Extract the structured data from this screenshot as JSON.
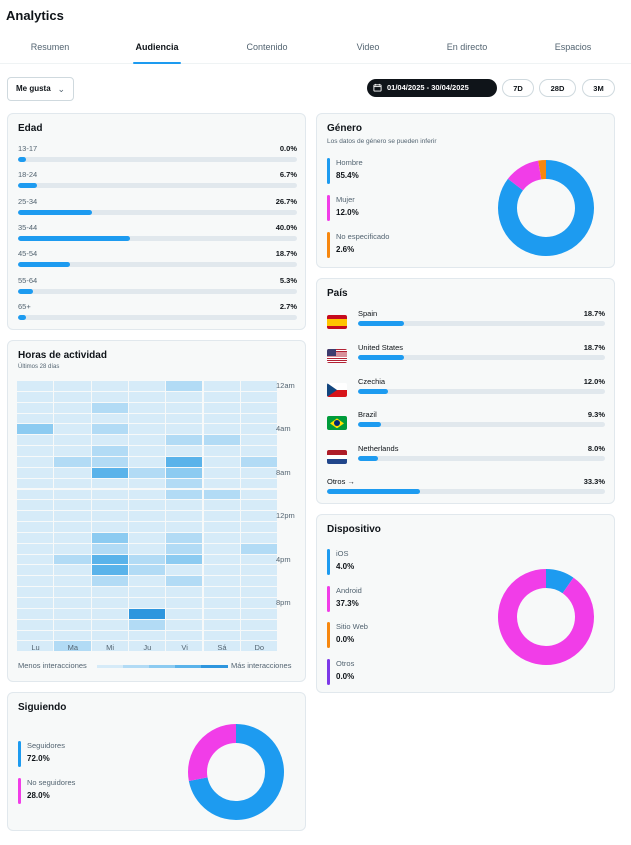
{
  "header": {
    "title": "Analytics"
  },
  "tabs": [
    "Resumen",
    "Audiencia",
    "Contenido",
    "Video",
    "En directo",
    "Espacios"
  ],
  "active_tab": 1,
  "filter": {
    "metric": "Me gusta",
    "date_range": "01/04/2025 - 30/04/2025",
    "periods": [
      "7D",
      "28D",
      "3M"
    ]
  },
  "age": {
    "title": "Edad",
    "rows": [
      {
        "label": "13-17",
        "value": "0.0%",
        "pct": 0.0
      },
      {
        "label": "18-24",
        "value": "6.7%",
        "pct": 6.7
      },
      {
        "label": "25-34",
        "value": "26.7%",
        "pct": 26.7
      },
      {
        "label": "35-44",
        "value": "40.0%",
        "pct": 40.0
      },
      {
        "label": "45-54",
        "value": "18.7%",
        "pct": 18.7
      },
      {
        "label": "55-64",
        "value": "5.3%",
        "pct": 5.3
      },
      {
        "label": "65+",
        "value": "2.7%",
        "pct": 2.7
      }
    ]
  },
  "activity": {
    "title": "Horas de actividad",
    "subtitle": "Últimos 28 días",
    "days": [
      "Lu",
      "Ma",
      "Mi",
      "Ju",
      "Vi",
      "Sá",
      "Do"
    ],
    "hour_labels": [
      "12am",
      "4am",
      "8am",
      "12pm",
      "4pm",
      "8pm"
    ],
    "legend_low": "Menos interacciones",
    "legend_high": "Más interacciones",
    "scale_colors": [
      "#d6ebf8",
      "#b2dbf5",
      "#8ccbf1",
      "#5ab3ea",
      "#2e96de"
    ],
    "grid": [
      [
        0,
        0,
        0,
        0,
        1,
        0,
        0
      ],
      [
        0,
        0,
        0,
        0,
        0,
        0,
        0
      ],
      [
        0,
        0,
        1,
        0,
        0,
        0,
        0
      ],
      [
        0,
        0,
        0,
        0,
        0,
        0,
        0
      ],
      [
        2,
        0,
        1,
        0,
        0,
        0,
        0
      ],
      [
        0,
        0,
        0,
        0,
        1,
        1,
        0
      ],
      [
        0,
        0,
        1,
        0,
        0,
        0,
        0
      ],
      [
        0,
        1,
        1,
        0,
        3,
        0,
        1
      ],
      [
        0,
        0,
        3,
        1,
        2,
        0,
        0
      ],
      [
        0,
        0,
        0,
        0,
        1,
        0,
        0
      ],
      [
        0,
        0,
        0,
        0,
        1,
        1,
        0
      ],
      [
        0,
        0,
        0,
        0,
        0,
        0,
        0
      ],
      [
        0,
        0,
        0,
        0,
        0,
        0,
        0
      ],
      [
        0,
        0,
        0,
        0,
        0,
        0,
        0
      ],
      [
        0,
        0,
        2,
        0,
        1,
        0,
        0
      ],
      [
        0,
        0,
        1,
        0,
        1,
        0,
        1
      ],
      [
        0,
        1,
        3,
        1,
        2,
        0,
        0
      ],
      [
        0,
        0,
        3,
        1,
        0,
        0,
        0
      ],
      [
        0,
        0,
        1,
        0,
        1,
        0,
        0
      ],
      [
        0,
        0,
        0,
        0,
        0,
        0,
        0
      ],
      [
        0,
        0,
        0,
        0,
        0,
        0,
        0
      ],
      [
        0,
        0,
        0,
        4,
        0,
        0,
        0
      ],
      [
        0,
        0,
        0,
        1,
        0,
        0,
        0
      ],
      [
        0,
        0,
        0,
        0,
        0,
        0,
        0
      ],
      [
        0,
        1,
        0,
        0,
        0,
        0,
        0
      ]
    ]
  },
  "following": {
    "title": "Siguiendo",
    "items": [
      {
        "label": "Seguidores",
        "value": "72.0%",
        "pct": 72.0,
        "color": "#1d9bf0"
      },
      {
        "label": "No seguidores",
        "value": "28.0%",
        "pct": 28.0,
        "color": "#f13de8"
      }
    ]
  },
  "gender": {
    "title": "Género",
    "subtitle": "Los datos de género se pueden inferir",
    "items": [
      {
        "label": "Hombre",
        "value": "85.4%",
        "pct": 85.4,
        "color": "#1d9bf0"
      },
      {
        "label": "Mujer",
        "value": "12.0%",
        "pct": 12.0,
        "color": "#f13de8"
      },
      {
        "label": "No especificado",
        "value": "2.6%",
        "pct": 2.6,
        "color": "#f7870f"
      }
    ]
  },
  "country": {
    "title": "País",
    "rows": [
      {
        "label": "Spain",
        "value": "18.7%",
        "pct": 18.7,
        "flag": "es"
      },
      {
        "label": "United States",
        "value": "18.7%",
        "pct": 18.7,
        "flag": "us"
      },
      {
        "label": "Czechia",
        "value": "12.0%",
        "pct": 12.0,
        "flag": "cz"
      },
      {
        "label": "Brazil",
        "value": "9.3%",
        "pct": 9.3,
        "flag": "br"
      },
      {
        "label": "Netherlands",
        "value": "8.0%",
        "pct": 8.0,
        "flag": "nl"
      }
    ],
    "others": {
      "label": "Otros →",
      "value": "33.3%",
      "pct": 33.3
    }
  },
  "device": {
    "title": "Dispositivo",
    "items": [
      {
        "label": "iOS",
        "value": "4.0%",
        "pct": 4.0,
        "color": "#1d9bf0"
      },
      {
        "label": "Android",
        "value": "37.3%",
        "pct": 37.3,
        "color": "#f13de8"
      },
      {
        "label": "Sitio Web",
        "value": "0.0%",
        "pct": 0.0,
        "color": "#f7870f"
      },
      {
        "label": "Otros",
        "value": "0.0%",
        "pct": 0.0,
        "color": "#7d39e8"
      }
    ]
  }
}
